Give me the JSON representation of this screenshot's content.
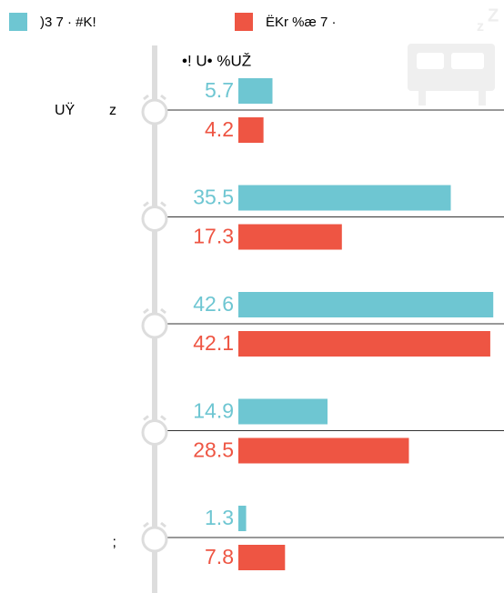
{
  "chart_data": {
    "type": "bar",
    "orientation": "horizontal",
    "subtitle": "•! U• %UŽ",
    "annotations": [
      "UŸ"
    ],
    "categories": [
      "z",
      null,
      null,
      null,
      ";"
    ],
    "series": [
      {
        "name": ")3  7 · #K!",
        "color": "#6ec6d2",
        "values": [
          5.7,
          35.5,
          42.6,
          14.9,
          1.3
        ]
      },
      {
        "name": "ËKr  %æ 7 ·",
        "color": "#ee5543",
        "values": [
          4.2,
          17.3,
          42.1,
          28.5,
          7.8
        ]
      }
    ],
    "xlim": [
      0,
      45
    ]
  }
}
